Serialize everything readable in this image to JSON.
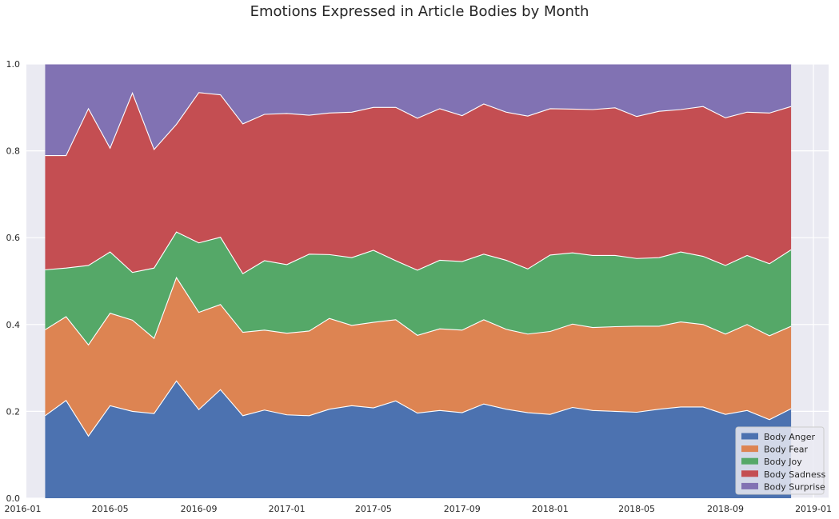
{
  "chart_data": {
    "type": "area",
    "stacked": true,
    "title": "Emotions Expressed in Article Bodies by Month",
    "xlabel": "",
    "ylabel": "",
    "ylim": [
      0,
      1.0
    ],
    "xlim": [
      "2016-01-06",
      "2019-01-22"
    ],
    "grid": true,
    "legend_position": "bottom-right",
    "x_ticks": [
      "2016-01",
      "2016-05",
      "2016-09",
      "2017-01",
      "2017-05",
      "2017-09",
      "2018-01",
      "2018-05",
      "2018-09",
      "2019-01"
    ],
    "y_ticks": [
      "0.0",
      "0.2",
      "0.4",
      "0.6",
      "0.8",
      "1.0"
    ],
    "x": [
      "2016-02",
      "2016-03",
      "2016-04",
      "2016-05",
      "2016-06",
      "2016-07",
      "2016-08",
      "2016-09",
      "2016-10",
      "2016-11",
      "2016-12",
      "2017-01",
      "2017-02",
      "2017-03",
      "2017-04",
      "2017-05",
      "2017-06",
      "2017-07",
      "2017-08",
      "2017-09",
      "2017-10",
      "2017-11",
      "2017-12",
      "2018-01",
      "2018-02",
      "2018-03",
      "2018-04",
      "2018-05",
      "2018-06",
      "2018-07",
      "2018-08",
      "2018-09",
      "2018-10",
      "2018-11",
      "2018-12"
    ],
    "series": [
      {
        "name": "Body Anger",
        "color": "#4c72b0",
        "values": [
          0.19,
          0.225,
          0.143,
          0.213,
          0.2,
          0.195,
          0.27,
          0.204,
          0.25,
          0.19,
          0.203,
          0.192,
          0.19,
          0.205,
          0.213,
          0.208,
          0.224,
          0.196,
          0.202,
          0.197,
          0.217,
          0.205,
          0.197,
          0.193,
          0.209,
          0.202,
          0.2,
          0.198,
          0.205,
          0.21,
          0.21,
          0.193,
          0.202,
          0.181,
          0.206
        ]
      },
      {
        "name": "Body Fear",
        "color": "#dd8452",
        "values": [
          0.198,
          0.193,
          0.21,
          0.213,
          0.21,
          0.173,
          0.238,
          0.224,
          0.196,
          0.192,
          0.184,
          0.188,
          0.195,
          0.209,
          0.185,
          0.197,
          0.187,
          0.179,
          0.188,
          0.19,
          0.194,
          0.184,
          0.181,
          0.191,
          0.192,
          0.191,
          0.195,
          0.198,
          0.191,
          0.196,
          0.19,
          0.185,
          0.198,
          0.193,
          0.19
        ]
      },
      {
        "name": "Body Joy",
        "color": "#55a868",
        "values": [
          0.138,
          0.112,
          0.183,
          0.141,
          0.11,
          0.162,
          0.105,
          0.16,
          0.155,
          0.135,
          0.16,
          0.158,
          0.177,
          0.147,
          0.156,
          0.166,
          0.136,
          0.15,
          0.158,
          0.158,
          0.151,
          0.159,
          0.15,
          0.176,
          0.164,
          0.166,
          0.164,
          0.156,
          0.158,
          0.161,
          0.157,
          0.158,
          0.159,
          0.166,
          0.176
        ]
      },
      {
        "name": "Body Sadness",
        "color": "#c44e52",
        "values": [
          0.263,
          0.259,
          0.361,
          0.239,
          0.413,
          0.273,
          0.248,
          0.346,
          0.328,
          0.345,
          0.337,
          0.348,
          0.32,
          0.326,
          0.335,
          0.329,
          0.353,
          0.35,
          0.349,
          0.336,
          0.346,
          0.341,
          0.352,
          0.337,
          0.331,
          0.336,
          0.34,
          0.327,
          0.337,
          0.328,
          0.345,
          0.34,
          0.33,
          0.347,
          0.33
        ]
      },
      {
        "name": "Body Surprise",
        "color": "#8172b3",
        "values": [
          0.211,
          0.211,
          0.103,
          0.194,
          0.067,
          0.197,
          0.139,
          0.066,
          0.071,
          0.138,
          0.116,
          0.114,
          0.118,
          0.113,
          0.111,
          0.1,
          0.1,
          0.125,
          0.103,
          0.119,
          0.092,
          0.111,
          0.12,
          0.103,
          0.104,
          0.105,
          0.101,
          0.121,
          0.109,
          0.105,
          0.098,
          0.124,
          0.111,
          0.113,
          0.098
        ]
      }
    ]
  }
}
